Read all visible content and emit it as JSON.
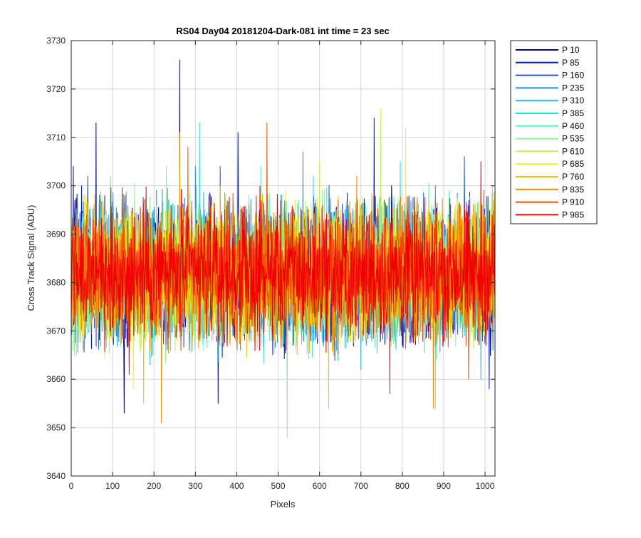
{
  "chart_data": {
    "type": "line",
    "title": "RS04 Day04 20181204-Dark-081 int time = 23 sec",
    "xlabel": "Pixels",
    "ylabel": "Cross Track Signal (ADU)",
    "xlim": [
      0,
      1024
    ],
    "ylim": [
      3640,
      3730
    ],
    "xticks": [
      0,
      100,
      200,
      300,
      400,
      500,
      600,
      700,
      800,
      900,
      1000
    ],
    "yticks": [
      3640,
      3650,
      3660,
      3670,
      3680,
      3690,
      3700,
      3710,
      3720,
      3730
    ],
    "grid": true,
    "legend_position": "outside-top-right",
    "noise_model": {
      "mean": 3682,
      "typical_low": 3668,
      "typical_high": 3697,
      "n_points": 1024
    },
    "series": [
      {
        "name": "P 10",
        "color": "#0000a8",
        "spikes": [
          [
            5,
            3704
          ],
          [
            60,
            3713
          ],
          [
            128,
            3653
          ],
          [
            262,
            3726
          ],
          [
            355,
            3655
          ]
        ]
      },
      {
        "name": "P 85",
        "color": "#0014d8",
        "spikes": [
          [
            403,
            3711
          ],
          [
            732,
            3714
          ],
          [
            1010,
            3658
          ]
        ]
      },
      {
        "name": "P 160",
        "color": "#1c54e8",
        "spikes": [
          [
            40,
            3702
          ],
          [
            360,
            3704
          ],
          [
            950,
            3706
          ]
        ]
      },
      {
        "name": "P 235",
        "color": "#1e90e8",
        "spikes": [
          [
            300,
            3704
          ],
          [
            560,
            3707
          ],
          [
            880,
            3700
          ]
        ]
      },
      {
        "name": "P 310",
        "color": "#20b8f0",
        "spikes": [
          [
            190,
            3663
          ],
          [
            700,
            3662
          ],
          [
            990,
            3660
          ]
        ]
      },
      {
        "name": "P 385",
        "color": "#20e0ec",
        "spikes": [
          [
            310,
            3713
          ],
          [
            585,
            3702
          ],
          [
            795,
            3705
          ]
        ]
      },
      {
        "name": "P 460",
        "color": "#60f0c0",
        "spikes": [
          [
            95,
            3702
          ],
          [
            458,
            3704
          ],
          [
            880,
            3654
          ]
        ]
      },
      {
        "name": "P 535",
        "color": "#90f098",
        "spikes": [
          [
            522,
            3648
          ],
          [
            230,
            3704
          ]
        ]
      },
      {
        "name": "P 610",
        "color": "#c8f050",
        "spikes": [
          [
            748,
            3716
          ],
          [
            600,
            3705
          ]
        ]
      },
      {
        "name": "P 685",
        "color": "#f0f020",
        "spikes": [
          [
            808,
            3712
          ],
          [
            150,
            3658
          ]
        ]
      },
      {
        "name": "P 760",
        "color": "#f0c000",
        "spikes": [
          [
            262,
            3711
          ],
          [
            622,
            3654
          ],
          [
            175,
            3655
          ]
        ]
      },
      {
        "name": "P 835",
        "color": "#f09000",
        "spikes": [
          [
            218,
            3651
          ],
          [
            875,
            3654
          ],
          [
            690,
            3702
          ]
        ]
      },
      {
        "name": "P 910",
        "color": "#f05000",
        "spikes": [
          [
            473,
            3713
          ],
          [
            282,
            3708
          ],
          [
            960,
            3660
          ]
        ]
      },
      {
        "name": "P 985",
        "color": "#f00000",
        "spikes": [
          [
            990,
            3705
          ],
          [
            770,
            3657
          ],
          [
            140,
            3661
          ]
        ]
      }
    ]
  }
}
